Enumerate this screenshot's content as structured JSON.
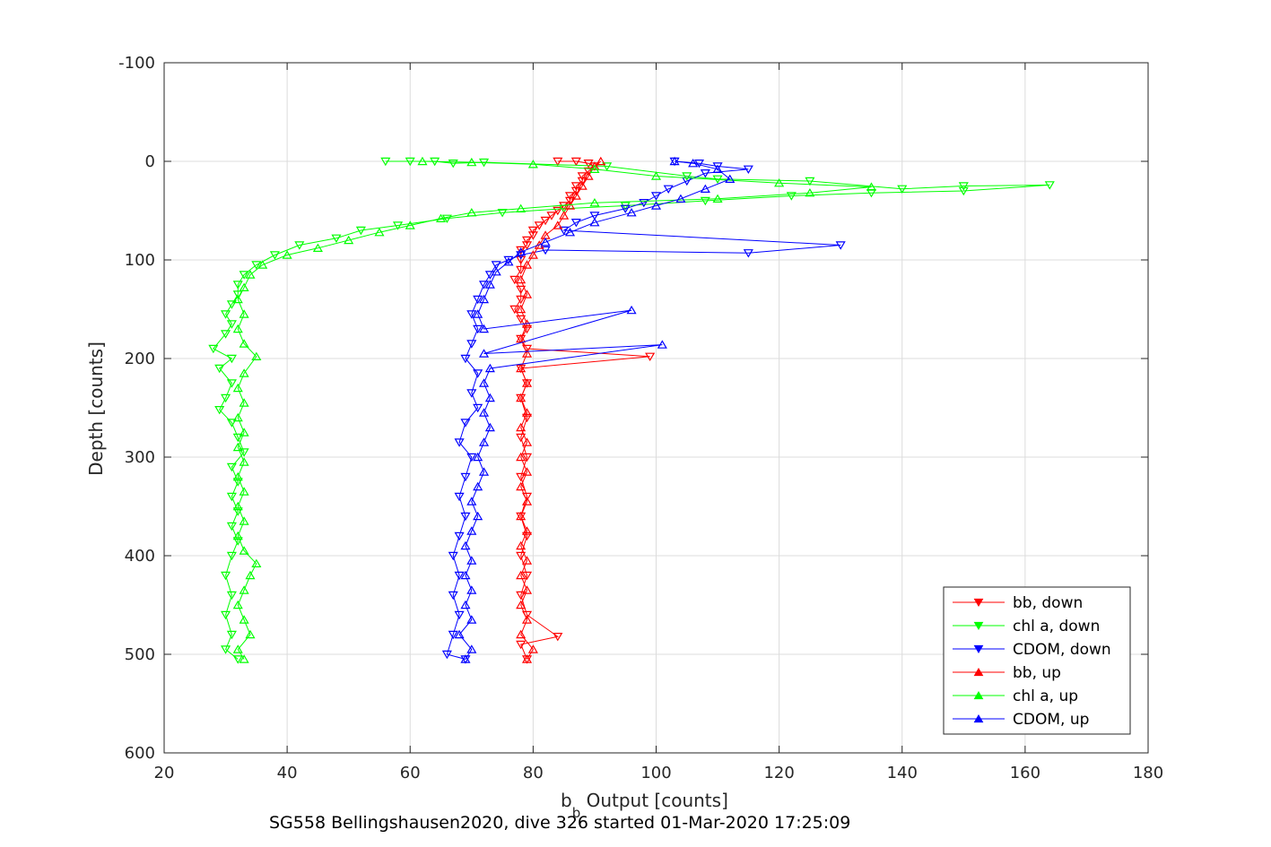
{
  "chart_data": {
    "type": "scatter",
    "xlabel_main": "b",
    "xlabel_sub": "b",
    "xlabel_rest": " Output [counts]",
    "ylabel": "Depth [counts]",
    "caption": "SG558 Bellingshausen2020, dive 326 started 01-Mar-2020 17:25:09",
    "xlim": [
      20,
      180
    ],
    "ylim": [
      -100,
      600
    ],
    "y_reversed": true,
    "xticks": [
      20,
      40,
      60,
      80,
      100,
      120,
      140,
      160,
      180
    ],
    "yticks": [
      -100,
      0,
      100,
      200,
      300,
      400,
      500,
      600
    ],
    "grid": true,
    "legend_position": "bottom-right",
    "colors": {
      "bb": "#ff0000",
      "chl": "#00ff00",
      "cdom": "#0000ff"
    },
    "series": [
      {
        "name": "bb, down",
        "color": "#ff0000",
        "marker": "triangle-down",
        "points": [
          [
            84,
            0
          ],
          [
            87,
            0
          ],
          [
            89,
            2
          ],
          [
            90,
            5
          ],
          [
            89,
            10
          ],
          [
            88,
            15
          ],
          [
            88,
            20
          ],
          [
            87,
            25
          ],
          [
            87,
            30
          ],
          [
            86,
            35
          ],
          [
            86,
            40
          ],
          [
            85,
            45
          ],
          [
            84,
            50
          ],
          [
            83,
            55
          ],
          [
            82,
            60
          ],
          [
            81,
            65
          ],
          [
            80,
            70
          ],
          [
            80,
            75
          ],
          [
            79,
            80
          ],
          [
            79,
            85
          ],
          [
            78,
            90
          ],
          [
            78,
            100
          ],
          [
            78,
            110
          ],
          [
            77,
            120
          ],
          [
            78,
            130
          ],
          [
            78,
            140
          ],
          [
            77,
            150
          ],
          [
            78,
            160
          ],
          [
            79,
            170
          ],
          [
            78,
            180
          ],
          [
            79,
            190
          ],
          [
            99,
            198
          ],
          [
            78,
            210
          ],
          [
            79,
            225
          ],
          [
            78,
            240
          ],
          [
            79,
            260
          ],
          [
            78,
            280
          ],
          [
            79,
            300
          ],
          [
            78,
            320
          ],
          [
            79,
            340
          ],
          [
            78,
            360
          ],
          [
            79,
            380
          ],
          [
            78,
            400
          ],
          [
            79,
            420
          ],
          [
            78,
            440
          ],
          [
            79,
            460
          ],
          [
            84,
            482
          ],
          [
            78,
            490
          ],
          [
            79,
            505
          ]
        ]
      },
      {
        "name": "chl a, down",
        "color": "#00ff00",
        "marker": "triangle-down",
        "points": [
          [
            56,
            0
          ],
          [
            60,
            0
          ],
          [
            64,
            0
          ],
          [
            67,
            2
          ],
          [
            72,
            1
          ],
          [
            92,
            5
          ],
          [
            105,
            15
          ],
          [
            110,
            18
          ],
          [
            125,
            20
          ],
          [
            140,
            28
          ],
          [
            150,
            25
          ],
          [
            164,
            24
          ],
          [
            150,
            30
          ],
          [
            135,
            32
          ],
          [
            122,
            35
          ],
          [
            108,
            40
          ],
          [
            95,
            45
          ],
          [
            85,
            48
          ],
          [
            75,
            52
          ],
          [
            66,
            58
          ],
          [
            58,
            65
          ],
          [
            52,
            70
          ],
          [
            48,
            78
          ],
          [
            42,
            85
          ],
          [
            38,
            95
          ],
          [
            35,
            105
          ],
          [
            33,
            115
          ],
          [
            32,
            125
          ],
          [
            32,
            135
          ],
          [
            31,
            145
          ],
          [
            30,
            155
          ],
          [
            31,
            165
          ],
          [
            30,
            175
          ],
          [
            28,
            190
          ],
          [
            31,
            200
          ],
          [
            29,
            210
          ],
          [
            31,
            225
          ],
          [
            30,
            240
          ],
          [
            29,
            252
          ],
          [
            31,
            265
          ],
          [
            32,
            280
          ],
          [
            33,
            295
          ],
          [
            31,
            310
          ],
          [
            32,
            325
          ],
          [
            31,
            340
          ],
          [
            32,
            355
          ],
          [
            31,
            370
          ],
          [
            32,
            385
          ],
          [
            31,
            400
          ],
          [
            30,
            420
          ],
          [
            31,
            440
          ],
          [
            30,
            460
          ],
          [
            31,
            480
          ],
          [
            30,
            495
          ],
          [
            32,
            505
          ]
        ]
      },
      {
        "name": "CDOM, down",
        "color": "#0000ff",
        "marker": "triangle-down",
        "points": [
          [
            103,
            0
          ],
          [
            107,
            2
          ],
          [
            110,
            5
          ],
          [
            115,
            8
          ],
          [
            108,
            12
          ],
          [
            105,
            20
          ],
          [
            102,
            28
          ],
          [
            100,
            35
          ],
          [
            98,
            42
          ],
          [
            95,
            48
          ],
          [
            90,
            55
          ],
          [
            87,
            62
          ],
          [
            85,
            70
          ],
          [
            130,
            85
          ],
          [
            115,
            93
          ],
          [
            82,
            90
          ],
          [
            78,
            95
          ],
          [
            76,
            100
          ],
          [
            74,
            105
          ],
          [
            73,
            115
          ],
          [
            72,
            125
          ],
          [
            71,
            140
          ],
          [
            70,
            155
          ],
          [
            71,
            170
          ],
          [
            70,
            185
          ],
          [
            69,
            200
          ],
          [
            71,
            215
          ],
          [
            70,
            235
          ],
          [
            71,
            250
          ],
          [
            69,
            265
          ],
          [
            68,
            285
          ],
          [
            70,
            300
          ],
          [
            69,
            320
          ],
          [
            68,
            340
          ],
          [
            69,
            360
          ],
          [
            68,
            380
          ],
          [
            67,
            400
          ],
          [
            68,
            420
          ],
          [
            67,
            440
          ],
          [
            68,
            460
          ],
          [
            67,
            480
          ],
          [
            66,
            500
          ],
          [
            69,
            505
          ]
        ]
      },
      {
        "name": "bb, up",
        "color": "#ff0000",
        "marker": "triangle-up",
        "points": [
          [
            79,
            505
          ],
          [
            80,
            495
          ],
          [
            78,
            480
          ],
          [
            79,
            465
          ],
          [
            78,
            450
          ],
          [
            79,
            435
          ],
          [
            78,
            420
          ],
          [
            79,
            405
          ],
          [
            78,
            390
          ],
          [
            79,
            375
          ],
          [
            78,
            360
          ],
          [
            79,
            345
          ],
          [
            78,
            330
          ],
          [
            79,
            315
          ],
          [
            78,
            300
          ],
          [
            79,
            285
          ],
          [
            78,
            270
          ],
          [
            79,
            255
          ],
          [
            78,
            240
          ],
          [
            79,
            225
          ],
          [
            78,
            210
          ],
          [
            79,
            195
          ],
          [
            78,
            180
          ],
          [
            79,
            165
          ],
          [
            78,
            150
          ],
          [
            79,
            135
          ],
          [
            78,
            120
          ],
          [
            79,
            105
          ],
          [
            80,
            95
          ],
          [
            81,
            85
          ],
          [
            82,
            75
          ],
          [
            84,
            65
          ],
          [
            85,
            55
          ],
          [
            86,
            45
          ],
          [
            87,
            35
          ],
          [
            88,
            25
          ],
          [
            89,
            15
          ],
          [
            90,
            5
          ],
          [
            91,
            0
          ]
        ]
      },
      {
        "name": "chl a, up",
        "color": "#00ff00",
        "marker": "triangle-up",
        "points": [
          [
            33,
            505
          ],
          [
            32,
            495
          ],
          [
            34,
            480
          ],
          [
            33,
            465
          ],
          [
            32,
            450
          ],
          [
            33,
            435
          ],
          [
            34,
            420
          ],
          [
            35,
            408
          ],
          [
            33,
            395
          ],
          [
            32,
            380
          ],
          [
            33,
            365
          ],
          [
            32,
            350
          ],
          [
            33,
            335
          ],
          [
            32,
            320
          ],
          [
            33,
            305
          ],
          [
            32,
            290
          ],
          [
            33,
            275
          ],
          [
            32,
            260
          ],
          [
            33,
            245
          ],
          [
            32,
            230
          ],
          [
            33,
            215
          ],
          [
            35,
            198
          ],
          [
            33,
            185
          ],
          [
            32,
            170
          ],
          [
            33,
            155
          ],
          [
            32,
            140
          ],
          [
            33,
            128
          ],
          [
            34,
            115
          ],
          [
            36,
            105
          ],
          [
            40,
            95
          ],
          [
            45,
            88
          ],
          [
            50,
            80
          ],
          [
            55,
            72
          ],
          [
            60,
            65
          ],
          [
            65,
            58
          ],
          [
            70,
            52
          ],
          [
            78,
            48
          ],
          [
            90,
            42
          ],
          [
            110,
            38
          ],
          [
            125,
            32
          ],
          [
            135,
            26
          ],
          [
            120,
            22
          ],
          [
            100,
            15
          ],
          [
            90,
            8
          ],
          [
            80,
            3
          ],
          [
            70,
            1
          ],
          [
            62,
            0
          ]
        ]
      },
      {
        "name": "CDOM, up",
        "color": "#0000ff",
        "marker": "triangle-up",
        "points": [
          [
            69,
            505
          ],
          [
            70,
            495
          ],
          [
            68,
            480
          ],
          [
            70,
            465
          ],
          [
            69,
            450
          ],
          [
            70,
            435
          ],
          [
            69,
            420
          ],
          [
            70,
            405
          ],
          [
            69,
            390
          ],
          [
            70,
            375
          ],
          [
            71,
            360
          ],
          [
            70,
            345
          ],
          [
            71,
            330
          ],
          [
            72,
            315
          ],
          [
            71,
            300
          ],
          [
            72,
            285
          ],
          [
            73,
            270
          ],
          [
            72,
            255
          ],
          [
            73,
            240
          ],
          [
            72,
            225
          ],
          [
            73,
            210
          ],
          [
            101,
            186
          ],
          [
            72,
            195
          ],
          [
            96,
            151
          ],
          [
            72,
            170
          ],
          [
            71,
            155
          ],
          [
            72,
            140
          ],
          [
            73,
            125
          ],
          [
            74,
            112
          ],
          [
            76,
            102
          ],
          [
            78,
            92
          ],
          [
            82,
            82
          ],
          [
            86,
            72
          ],
          [
            90,
            62
          ],
          [
            96,
            52
          ],
          [
            100,
            45
          ],
          [
            104,
            38
          ],
          [
            108,
            28
          ],
          [
            112,
            18
          ],
          [
            110,
            8
          ],
          [
            106,
            2
          ],
          [
            103,
            0
          ]
        ]
      }
    ]
  }
}
